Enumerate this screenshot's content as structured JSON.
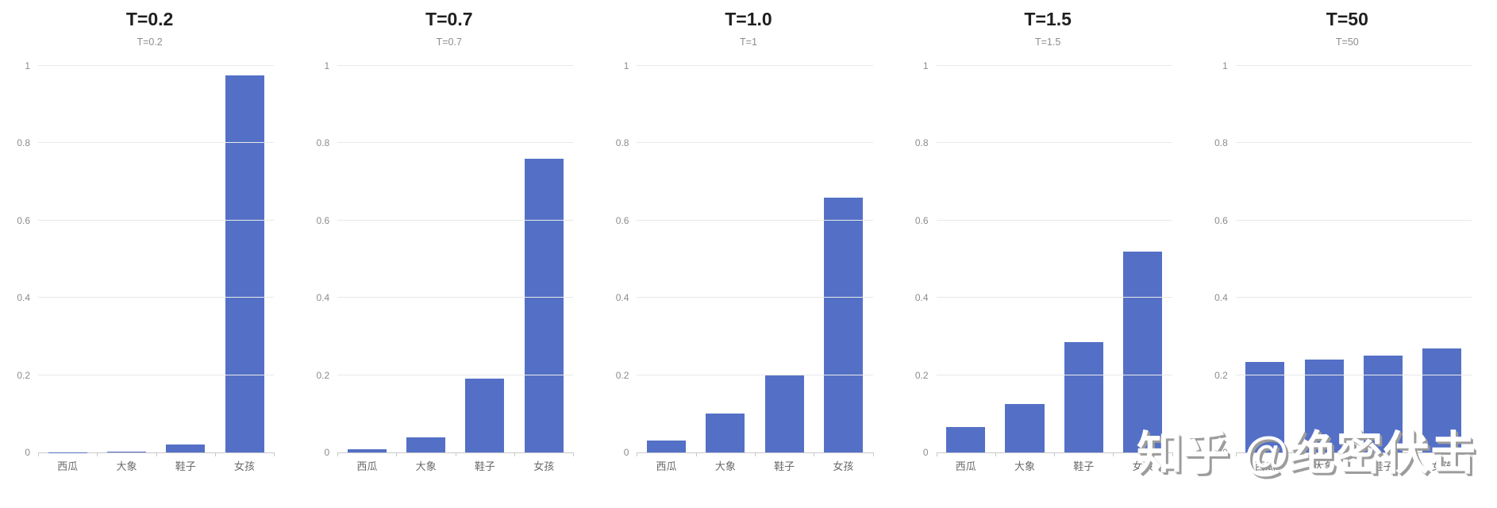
{
  "watermark": {
    "text": "知乎 @绝密伏击"
  },
  "colors": {
    "bar": "#5470C6",
    "gridline": "#e8e8e8",
    "axis": "#c9c9c9",
    "title": "#1f1f1f",
    "subtitle": "#8d8d8d",
    "ytick_label": "#8c8c8c",
    "xtick_label": "#696969"
  },
  "chart_data": [
    {
      "type": "bar",
      "title": "T=0.2",
      "subtitle": "T=0.2",
      "categories": [
        "西瓜",
        "大象",
        "鞋子",
        "女孩"
      ],
      "values": [
        0.001,
        0.003,
        0.021,
        0.975
      ],
      "ylim": [
        0,
        1
      ],
      "yticks": [
        0,
        0.2,
        0.4,
        0.6,
        0.8,
        1
      ],
      "ytick_labels": [
        "0",
        "0.2",
        "0.4",
        "0.6",
        "0.8",
        "1"
      ],
      "grid": true,
      "legend": "none"
    },
    {
      "type": "bar",
      "title": "T=0.7",
      "subtitle": "T=0.7",
      "categories": [
        "西瓜",
        "大象",
        "鞋子",
        "女孩"
      ],
      "values": [
        0.008,
        0.04,
        0.19,
        0.76
      ],
      "ylim": [
        0,
        1
      ],
      "yticks": [
        0,
        0.2,
        0.4,
        0.6,
        0.8,
        1
      ],
      "ytick_labels": [
        "0",
        "0.2",
        "0.4",
        "0.6",
        "0.8",
        "1"
      ],
      "grid": true,
      "legend": "none"
    },
    {
      "type": "bar",
      "title": "T=1.0",
      "subtitle": "T=1",
      "categories": [
        "西瓜",
        "大象",
        "鞋子",
        "女孩"
      ],
      "values": [
        0.03,
        0.1,
        0.2,
        0.66
      ],
      "ylim": [
        0,
        1
      ],
      "yticks": [
        0,
        0.2,
        0.4,
        0.6,
        0.8,
        1
      ],
      "ytick_labels": [
        "0",
        "0.2",
        "0.4",
        "0.6",
        "0.8",
        "1"
      ],
      "grid": true,
      "legend": "none"
    },
    {
      "type": "bar",
      "title": "T=1.5",
      "subtitle": "T=1.5",
      "categories": [
        "西瓜",
        "大象",
        "鞋子",
        "女孩"
      ],
      "values": [
        0.065,
        0.125,
        0.285,
        0.52
      ],
      "ylim": [
        0,
        1
      ],
      "yticks": [
        0,
        0.2,
        0.4,
        0.6,
        0.8,
        1
      ],
      "ytick_labels": [
        "0",
        "0.2",
        "0.4",
        "0.6",
        "0.8",
        "1"
      ],
      "grid": true,
      "legend": "none"
    },
    {
      "type": "bar",
      "title": "T=50",
      "subtitle": "T=50",
      "categories": [
        "西瓜",
        "大象",
        "鞋子",
        "女孩"
      ],
      "values": [
        0.235,
        0.24,
        0.25,
        0.27
      ],
      "ylim": [
        0,
        1
      ],
      "yticks": [
        0,
        0.2,
        0.4,
        0.6,
        0.8,
        1
      ],
      "ytick_labels": [
        "0",
        "0.2",
        "0.4",
        "0.6",
        "0.8",
        "1"
      ],
      "grid": true,
      "legend": "none"
    }
  ]
}
